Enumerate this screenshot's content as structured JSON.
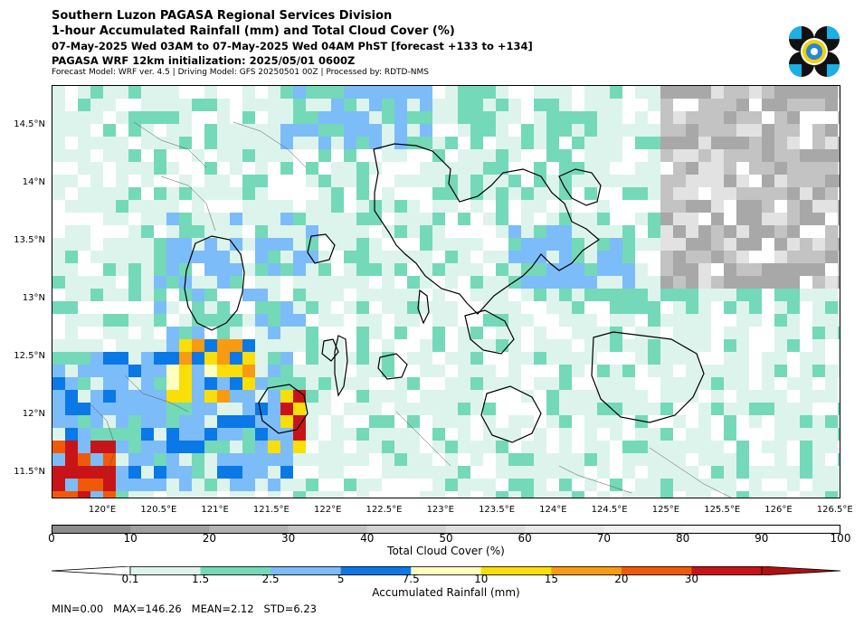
{
  "header": {
    "line1": "Southern Luzon PAGASA Regional Services Division",
    "line2": "1-hour Accumulated Rainfall (mm) and Total Cloud Cover (%)",
    "line3": "07-May-2025 Wed 03AM to 07-May-2025 Wed 04AM PhST [forecast +133 to +134]",
    "line4": "PAGASA WRF 12km initialization: 2025/05/01 0600Z",
    "line5": "Forecast Model: WRF ver. 4.5 | Driving Model: GFS 20250501 00Z | Processed by: RDTD-NMS"
  },
  "map": {
    "lat_labels": [
      "14.5°N",
      "14°N",
      "13.5°N",
      "13°N",
      "12.5°N",
      "12°N",
      "11.5°N"
    ],
    "lon_labels": [
      "120°E",
      "120.5°E",
      "121°E",
      "121.5°E",
      "122°E",
      "122.5°E",
      "123°E",
      "123.5°E",
      "124°E",
      "124.5°E",
      "125°E",
      "125.5°E",
      "126°E",
      "126.5°E"
    ],
    "lon_values": [
      120.0,
      120.5,
      121.0,
      121.5,
      122.0,
      122.5,
      123.0,
      123.5,
      124.0,
      124.5,
      125.0,
      125.5,
      126.0,
      126.5
    ],
    "lat_values": [
      14.5,
      14.0,
      13.5,
      13.0,
      12.5,
      12.0,
      11.5
    ],
    "extent": {
      "lon_min": 119.55,
      "lon_max": 126.55,
      "lat_min": 11.28,
      "lat_max": 14.85
    }
  },
  "cloud_colorbar": {
    "label": "Total Cloud Cover (%)",
    "ticks": [
      "0",
      "10",
      "20",
      "30",
      "40",
      "50",
      "60",
      "70",
      "80",
      "90",
      "100"
    ],
    "colors": [
      "#8c8c8c",
      "#a0a0a0",
      "#b2b2b2",
      "#c3c3c3",
      "#d2d2d2",
      "#dedede",
      "#e8e8e8",
      "#f0f0f0",
      "#f7f7f7",
      "#fcfcfc"
    ]
  },
  "rain_colorbar": {
    "label": "Accumulated Rainfall (mm)",
    "ticks": [
      "0.1",
      "1.5",
      "2.5",
      "5",
      "7.5",
      "10",
      "15",
      "20",
      "30"
    ],
    "colors": [
      "#ffffff",
      "#ddf4ec",
      "#74d9b8",
      "#7cbcf9",
      "#0a78e6",
      "#ffffc0",
      "#f9de08",
      "#f89a12",
      "#ef5a0a",
      "#c81418",
      "#b01010"
    ]
  },
  "stats": {
    "min": "MIN=0.00",
    "max": "MAX=146.26",
    "mean": "MEAN=2.12",
    "std": "STD=6.23"
  }
}
